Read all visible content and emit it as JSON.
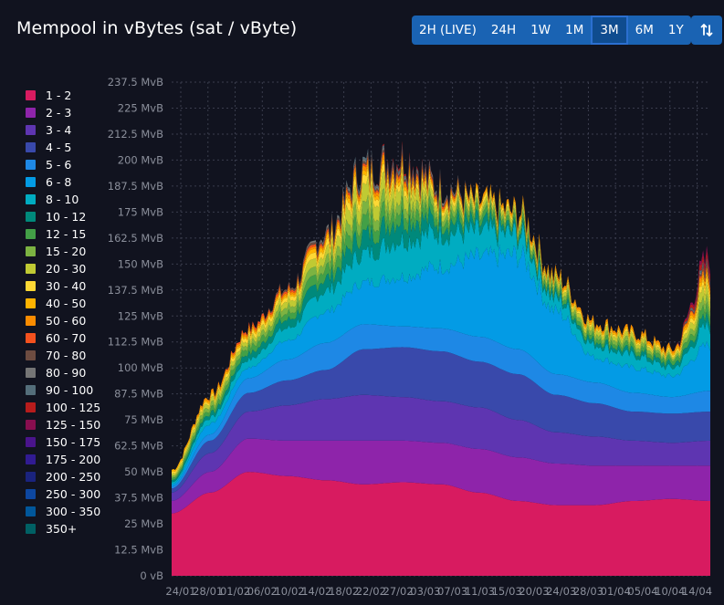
{
  "header": {
    "title": "Mempool in vBytes (sat / vByte)",
    "ranges": [
      "2H (LIVE)",
      "24H",
      "1W",
      "1M",
      "3M",
      "6M",
      "1Y"
    ],
    "active_range": "3M",
    "sort_icon": "sort-arrows-icon"
  },
  "legend": [
    {
      "label": "1 - 2",
      "color": "#d81b60"
    },
    {
      "label": "2 - 3",
      "color": "#8e24aa"
    },
    {
      "label": "3 - 4",
      "color": "#5e35b1"
    },
    {
      "label": "4 - 5",
      "color": "#3949ab"
    },
    {
      "label": "5 - 6",
      "color": "#1e88e5"
    },
    {
      "label": "6 - 8",
      "color": "#039be5"
    },
    {
      "label": "8 - 10",
      "color": "#00acc1"
    },
    {
      "label": "10 - 12",
      "color": "#00897b"
    },
    {
      "label": "12 - 15",
      "color": "#43a047"
    },
    {
      "label": "15 - 20",
      "color": "#7cb342"
    },
    {
      "label": "20 - 30",
      "color": "#c0ca33"
    },
    {
      "label": "30 - 40",
      "color": "#fdd835"
    },
    {
      "label": "40 - 50",
      "color": "#ffb300"
    },
    {
      "label": "50 - 60",
      "color": "#fb8c00"
    },
    {
      "label": "60 - 70",
      "color": "#f4511e"
    },
    {
      "label": "70 - 80",
      "color": "#6d4c41"
    },
    {
      "label": "80 - 90",
      "color": "#757575"
    },
    {
      "label": "90 - 100",
      "color": "#546e7a"
    },
    {
      "label": "100 - 125",
      "color": "#b71c1c"
    },
    {
      "label": "125 - 150",
      "color": "#880e4f"
    },
    {
      "label": "150 - 175",
      "color": "#4a148c"
    },
    {
      "label": "175 - 200",
      "color": "#311b92"
    },
    {
      "label": "200 - 250",
      "color": "#1a237e"
    },
    {
      "label": "250 - 300",
      "color": "#0d47a1"
    },
    {
      "label": "300 - 350",
      "color": "#01579b"
    },
    {
      "label": "350+",
      "color": "#006064"
    }
  ],
  "chart_data": {
    "type": "area",
    "stacked": true,
    "title": "Mempool in vBytes (sat / vByte)",
    "yunit": "MvB",
    "ylim": [
      0,
      237.5
    ],
    "y_ticks": [
      "0 vB",
      "12.5 MvB",
      "25 MvB",
      "37.5 MvB",
      "50 MvB",
      "62.5 MvB",
      "75 MvB",
      "87.5 MvB",
      "100 MvB",
      "112.5 MvB",
      "125 MvB",
      "137.5 MvB",
      "150 MvB",
      "162.5 MvB",
      "175 MvB",
      "187.5 MvB",
      "200 MvB",
      "212.5 MvB",
      "225 MvB",
      "237.5 MvB"
    ],
    "x_ticks": [
      "24/01",
      "28/01",
      "01/02",
      "06/02",
      "10/02",
      "14/02",
      "18/02",
      "22/02",
      "27/02",
      "03/03",
      "07/03",
      "11/03",
      "15/03",
      "20/03",
      "24/03",
      "28/03",
      "01/04",
      "05/04",
      "10/04",
      "14/04"
    ],
    "grid": true,
    "approximate_series": [
      {
        "name": "1 - 2",
        "values": [
          30,
          40,
          50,
          48,
          46,
          44,
          45,
          44,
          40,
          36,
          34,
          34,
          36,
          37,
          36
        ]
      },
      {
        "name": "2 - 3",
        "values": [
          6,
          10,
          16,
          17,
          19,
          21,
          20,
          20,
          21,
          21,
          20,
          19,
          17,
          16,
          17
        ]
      },
      {
        "name": "3 - 4",
        "values": [
          4,
          9,
          13,
          17,
          20,
          22,
          21,
          20,
          20,
          18,
          15,
          14,
          12,
          11,
          12
        ]
      },
      {
        "name": "4 - 5",
        "values": [
          2,
          6,
          9,
          12,
          14,
          22,
          24,
          24,
          22,
          22,
          18,
          16,
          14,
          14,
          14
        ]
      },
      {
        "name": "5 - 6",
        "values": [
          1,
          3,
          7,
          10,
          13,
          12,
          10,
          11,
          12,
          12,
          10,
          10,
          9,
          8,
          10
        ]
      },
      {
        "name": "6 - 8",
        "values": [
          1,
          5,
          5,
          9,
          15,
          20,
          24,
          30,
          38,
          45,
          30,
          12,
          12,
          10,
          22
        ]
      },
      {
        "name": "8 - 10",
        "values": [
          1,
          3,
          4,
          6,
          10,
          14,
          18,
          16,
          12,
          10,
          6,
          6,
          6,
          4,
          9
        ]
      },
      {
        "name": "10 - 12",
        "values": [
          1,
          2,
          3,
          4,
          6,
          9,
          10,
          6,
          4,
          2,
          2,
          2,
          2,
          2,
          4
        ]
      },
      {
        "name": "12 - 15",
        "values": [
          1,
          2,
          3,
          3,
          5,
          7,
          6,
          4,
          3,
          2,
          2,
          2,
          2,
          2,
          4
        ]
      },
      {
        "name": "15 - 20",
        "values": [
          1,
          2,
          2,
          3,
          4,
          6,
          5,
          3,
          2,
          2,
          2,
          2,
          2,
          1,
          4
        ]
      },
      {
        "name": "20 - 30",
        "values": [
          1,
          2,
          2,
          3,
          4,
          8,
          7,
          3,
          2,
          2,
          2,
          2,
          2,
          1,
          5
        ]
      },
      {
        "name": "30 - 40",
        "values": [
          1,
          1,
          2,
          2,
          3,
          4,
          3,
          2,
          2,
          1,
          1,
          1,
          1,
          1,
          3
        ]
      },
      {
        "name": "40 - 50",
        "values": [
          1,
          1,
          1,
          1,
          2,
          2,
          2,
          1,
          1,
          1,
          1,
          1,
          1,
          1,
          2
        ]
      },
      {
        "name": "50 - 60",
        "values": [
          0,
          1,
          1,
          1,
          1,
          2,
          2,
          1,
          1,
          1,
          1,
          1,
          1,
          1,
          2
        ]
      },
      {
        "name": "60 - 70",
        "values": [
          0,
          0,
          1,
          1,
          1,
          1,
          1,
          1,
          0,
          0,
          0,
          0,
          0,
          0,
          1
        ]
      },
      {
        "name": "70 - 80",
        "values": [
          0,
          0,
          0,
          1,
          1,
          1,
          1,
          1,
          0,
          0,
          0,
          0,
          0,
          0,
          1
        ]
      },
      {
        "name": "80 - 90",
        "values": [
          0,
          0,
          0,
          0,
          1,
          1,
          1,
          1,
          0,
          0,
          0,
          0,
          0,
          0,
          1
        ]
      },
      {
        "name": "90 - 100",
        "values": [
          0,
          0,
          0,
          0,
          0,
          1,
          1,
          0,
          0,
          0,
          0,
          0,
          0,
          0,
          1
        ]
      },
      {
        "name": "100 - 125",
        "values": [
          0,
          0,
          0,
          0,
          0,
          0,
          1,
          0,
          0,
          0,
          0,
          0,
          0,
          0,
          3
        ]
      },
      {
        "name": "125 - 150",
        "values": [
          0,
          0,
          0,
          0,
          0,
          0,
          0,
          0,
          0,
          0,
          0,
          0,
          0,
          0,
          2
        ]
      }
    ]
  }
}
